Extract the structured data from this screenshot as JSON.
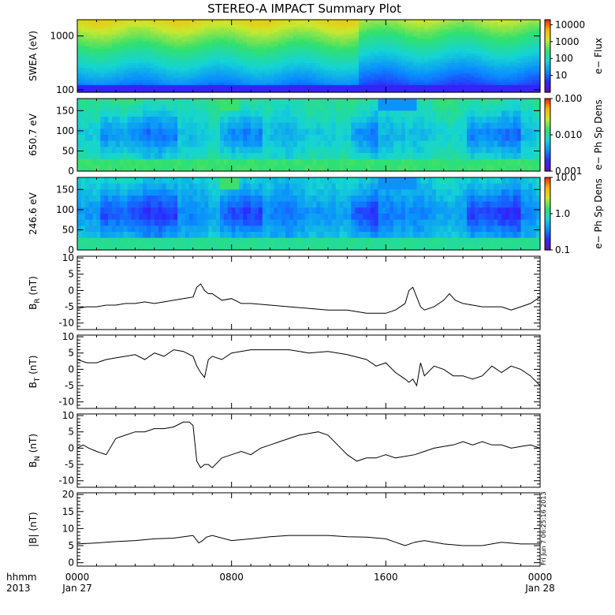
{
  "figure": {
    "title": "STEREO-A IMPACT Summary Plot",
    "stamp": "Fri Jun  7 06:25:16 2013"
  },
  "time_axis": {
    "row1_label": "hhmm",
    "row2_label": "2013",
    "ticks": [
      {
        "hours": 0,
        "top": "0000",
        "bottom": "Jan 27"
      },
      {
        "hours": 8,
        "top": "0800",
        "bottom": ""
      },
      {
        "hours": 16,
        "top": "1600",
        "bottom": ""
      },
      {
        "hours": 24,
        "top": "0000",
        "bottom": "Jan 28"
      }
    ],
    "xlim_hours": [
      0,
      24
    ]
  },
  "colors": {
    "spectrogram_scale": [
      "#6a0dad",
      "#2a2aff",
      "#0a8cff",
      "#15d4d4",
      "#30e070",
      "#c8e830",
      "#ffb400",
      "#ff1e00"
    ]
  },
  "chart_data": [
    {
      "type": "heatmap",
      "panel": "swea",
      "ylabel": "SWEA (eV)",
      "yscale": "log",
      "ylim": [
        90,
        2000
      ],
      "yticks": [
        "1000",
        "100"
      ],
      "colorbar_label": "e− Flux",
      "colorbar_ticks": [
        "10000",
        "1000",
        "100",
        "10"
      ],
      "colorbar_range": [
        1,
        20000
      ]
    },
    {
      "type": "heatmap",
      "panel": "pad_650",
      "ylabel": "650.7 eV",
      "ylim": [
        0,
        180
      ],
      "yticks": [
        "150",
        "100",
        "50",
        "0"
      ],
      "colorbar_label": "e− Ph Sp Dens",
      "colorbar_ticks": [
        "0.100",
        "0.010",
        "0.001"
      ],
      "colorbar_range": [
        0.001,
        0.1
      ]
    },
    {
      "type": "heatmap",
      "panel": "pad_246",
      "ylabel": "246.6 eV",
      "ylim": [
        0,
        180
      ],
      "yticks": [
        "150",
        "100",
        "50",
        "0"
      ],
      "colorbar_label": "e− Ph Sp Dens",
      "colorbar_ticks": [
        "10.0",
        "1.0",
        "0.1"
      ],
      "colorbar_range": [
        0.1,
        10
      ]
    },
    {
      "type": "line",
      "panel": "br",
      "ylabel": "BR (nT)",
      "ylabel_main": "B",
      "ylabel_sub": "R",
      "ylabel_unit": " (nT)",
      "ylim": [
        -12,
        10.5
      ],
      "yticks": [
        "10",
        "5",
        "0",
        "-5",
        "-10"
      ],
      "x": [
        0,
        0.5,
        1,
        1.5,
        2,
        2.5,
        3,
        3.5,
        4,
        4.5,
        5,
        5.5,
        6,
        6.2,
        6.4,
        6.6,
        6.8,
        7,
        7.5,
        8,
        8.5,
        9,
        10,
        11,
        12,
        13,
        14,
        15,
        16,
        16.5,
        17,
        17.2,
        17.4,
        17.6,
        17.8,
        18,
        18.5,
        19,
        19.3,
        19.6,
        20,
        21,
        22,
        22.5,
        23,
        23.5,
        24
      ],
      "values": [
        -5.5,
        -5,
        -5,
        -4.5,
        -4.5,
        -4,
        -4,
        -3.5,
        -4,
        -3.5,
        -3,
        -2.5,
        -2,
        1,
        2,
        0,
        -1,
        -1,
        -3,
        -2.5,
        -4,
        -4,
        -4.5,
        -5,
        -5.5,
        -6,
        -6,
        -7,
        -7,
        -6,
        -4,
        0,
        1,
        -2,
        -5,
        -6,
        -5,
        -3,
        -1,
        -3,
        -4,
        -5,
        -5,
        -6,
        -5,
        -4,
        -2
      ]
    },
    {
      "type": "line",
      "panel": "bt",
      "ylabel": "BT (nT)",
      "ylabel_main": "B",
      "ylabel_sub": "T",
      "ylabel_unit": " (nT)",
      "ylim": [
        -12,
        10.5
      ],
      "yticks": [
        "10",
        "5",
        "0",
        "-5",
        "-10"
      ],
      "x": [
        0,
        0.5,
        1,
        1.5,
        2,
        2.5,
        3,
        3.5,
        4,
        4.5,
        5,
        5.5,
        6,
        6.2,
        6.4,
        6.6,
        6.8,
        7,
        7.5,
        8,
        9,
        10,
        11,
        12,
        13,
        14,
        15,
        15.5,
        16,
        16.5,
        17,
        17.2,
        17.4,
        17.6,
        17.8,
        18,
        18.5,
        19,
        19.5,
        20,
        20.5,
        21,
        21.5,
        22,
        22.5,
        23,
        23.5,
        24
      ],
      "values": [
        3,
        2,
        2,
        3,
        3.5,
        4,
        4.5,
        3,
        5,
        4,
        6,
        5.5,
        4,
        1,
        -1,
        -2.5,
        3,
        4,
        3,
        5,
        6,
        6,
        6,
        5,
        5.5,
        4.5,
        3,
        1,
        2,
        -1,
        -3,
        -4,
        -3,
        -5,
        2,
        -2,
        1,
        0,
        -2,
        -2,
        -3,
        -2,
        1,
        -1,
        1,
        0,
        -2,
        -5
      ]
    },
    {
      "type": "line",
      "panel": "bn",
      "ylabel": "BN (nT)",
      "ylabel_main": "B",
      "ylabel_sub": "N",
      "ylabel_unit": " (nT)",
      "ylim": [
        -12,
        10.5
      ],
      "yticks": [
        "10",
        "5",
        "0",
        "-5",
        "-10"
      ],
      "x": [
        0,
        0.3,
        0.6,
        1,
        1.5,
        2,
        2.5,
        3,
        3.5,
        4,
        4.5,
        5,
        5.5,
        5.8,
        6,
        6.2,
        6.4,
        6.6,
        6.8,
        7,
        7.5,
        8,
        8.5,
        9,
        9.5,
        10,
        10.5,
        11,
        11.5,
        12,
        12.5,
        13,
        13.5,
        14,
        14.5,
        15,
        15.5,
        16,
        16.5,
        17,
        17.5,
        18,
        18.5,
        19,
        19.5,
        20,
        20.5,
        21,
        21.5,
        22,
        22.5,
        23,
        23.5,
        24
      ],
      "values": [
        0,
        1,
        0,
        -1,
        -2,
        3,
        4,
        5,
        5,
        6,
        6,
        6.5,
        8,
        8,
        7,
        -4,
        -6,
        -5,
        -5,
        -6,
        -3,
        -2,
        -1,
        -2,
        0,
        1,
        2,
        3,
        4,
        4.5,
        5,
        4,
        1,
        -2,
        -4,
        -3,
        -3,
        -2,
        -3,
        -2.5,
        -2,
        -1,
        0,
        0.5,
        1,
        2,
        1,
        2,
        1,
        1,
        0,
        0.5,
        1,
        0
      ]
    },
    {
      "type": "line",
      "panel": "bmag",
      "ylabel": "|B| (nT)",
      "ylabel_main": "|B|",
      "ylabel_sub": "",
      "ylabel_unit": " (nT)",
      "ylim": [
        -1,
        20.5
      ],
      "yticks": [
        "20",
        "15",
        "10",
        "5",
        "0"
      ],
      "x": [
        0,
        1,
        2,
        3,
        4,
        5,
        6,
        6.3,
        6.5,
        6.7,
        7,
        8,
        9,
        10,
        11,
        12,
        13,
        14,
        15,
        16,
        16.5,
        17,
        17.5,
        18,
        19,
        20,
        21,
        22,
        23,
        24
      ],
      "values": [
        5.5,
        5.8,
        6.2,
        6.5,
        7,
        7.2,
        8,
        5.8,
        6.5,
        7.5,
        8,
        6.5,
        7,
        7.6,
        8,
        8,
        8,
        7.6,
        7.5,
        7,
        6,
        5,
        6,
        6.5,
        5.5,
        5,
        5,
        6,
        5.5,
        5.5
      ]
    }
  ]
}
